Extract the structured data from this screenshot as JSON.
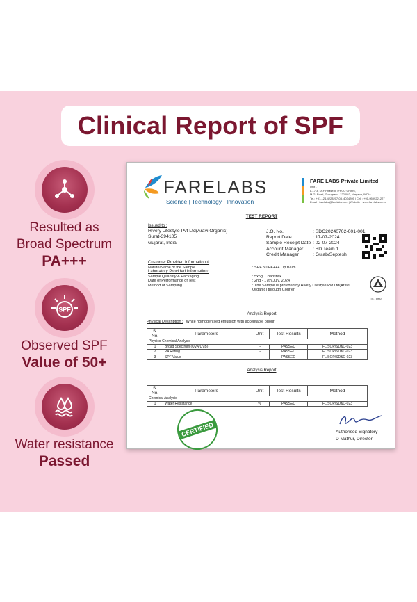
{
  "title": "Clinical Report of SPF",
  "features": [
    {
      "icon": "molecule-icon",
      "line1": "Resulted as",
      "line2": "Broad Spectrum",
      "bold": "PA+++"
    },
    {
      "icon": "spf-sun-icon",
      "icon_text": "SPF",
      "line1": "Observed SPF",
      "bold": "Value of 50+"
    },
    {
      "icon": "water-drops-icon",
      "line1": "Water resistance",
      "bold": "Passed"
    }
  ],
  "report": {
    "logo": "FARELABS",
    "tagline": "Science  |  Technology  |  Innovation",
    "lab_name": "FARE LABS Private Limited",
    "lab_lines": [
      "Unit - I",
      "L-17/3, DLF Phase-II, IFFCO Chowk,",
      "M.G. Road, Gurugram - 122 002, Haryana, INDIA",
      "Tel.: +91-124-4223207-08, 4034205  |  Cell : +91-9599221227",
      "Email : farelabs@farelabs.com  |  Website : www.farelabs.co.in"
    ],
    "heading": "TEST REPORT",
    "issued_to_label": "Issued to :",
    "issued_to": [
      "Hivefy Lifestyle Pvt Ltd(Aravi Organic)",
      "Surat-394105",
      "Gujarat, India"
    ],
    "meta": [
      {
        "key": "J.O. No.",
        "value": ": SDC20240702-001-001"
      },
      {
        "key": "Report Date",
        "value": ": 17-07-2024"
      },
      {
        "key": "Sample Receipt Date",
        "value": ": 02-07-2024"
      },
      {
        "key": "Account Manager",
        "value": ": BD Team 1"
      },
      {
        "key": "Credit Manager",
        "value": ": Gulab/Septesh"
      }
    ],
    "customer_info_label": "Customer Provided Information:#",
    "nature_label": "Nature/Name of the Sample",
    "nature_value": ": SPF 50 PA+++ Lip Balm",
    "lab_info_label": "Laboratory Provided Information:",
    "lab_info": [
      {
        "key": "Sample Quantity & Packaging",
        "value": ": 5x5g, Chapstick"
      },
      {
        "key": "Date of Performance of Test",
        "value": ": 2nd - 17th July, 2024"
      },
      {
        "key": "Method of Sampling",
        "value": ": The Sample is provided by Hivefy Lifestyle Pvt Ltd(Aravi Organic) through Courier."
      }
    ],
    "analysis_heading": "Analysis Report",
    "physical_label": "Physical Description :",
    "physical_value": "White homogenised emulsion with acceptable odour.",
    "table_headers": [
      "S. No.",
      "Parameters",
      "Unit",
      "Test Results",
      "Method"
    ],
    "table1_section": "Physico-Chemical Analysis",
    "table1_rows": [
      [
        "1",
        "Broad Spectrum (UVA/UVB)",
        "--",
        "PASSED",
        "FL/SOP/SD&C-023"
      ],
      [
        "2",
        "PA Rating",
        "--",
        "PASSED",
        "FL/SOP/SD&C-023"
      ],
      [
        "3",
        "SPF Value",
        "--",
        "PASSED",
        "FL/SOP/SD&C-023"
      ]
    ],
    "analysis_heading2": "Analysis Report",
    "table2_section": "Chemical Analysis",
    "table2_rows": [
      [
        "1",
        "Water Resistance",
        "%",
        "PASSED",
        "FL/SOP/SD&C-023"
      ]
    ],
    "stamp": "CERTIFIED",
    "signatory": "Authorised Signatory",
    "director": "D Mathur, Director",
    "accred_tag": "TC - 5960"
  },
  "colors": {
    "brand": "#7b1730",
    "pink_bg": "#f9d2de",
    "stamp_green": "#3a9a3e"
  }
}
